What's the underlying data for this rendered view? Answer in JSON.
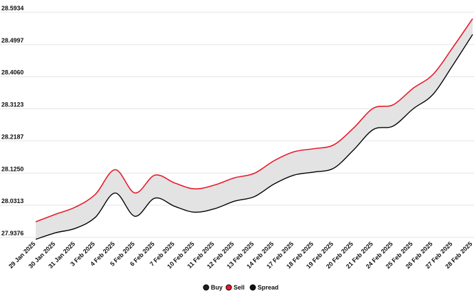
{
  "chart_data": {
    "type": "area",
    "categories": [
      "29 Jan 2025",
      "30 Jan 2025",
      "31 Jan 2025",
      "3 Feb 2025",
      "4 Feb 2025",
      "5 Feb 2025",
      "6 Feb 2025",
      "7 Feb 2025",
      "10 Feb 2025",
      "11 Feb 2025",
      "12 Feb 2025",
      "13 Feb 2025",
      "14 Feb 2025",
      "17 Feb 2025",
      "18 Feb 2025",
      "19 Feb 2025",
      "20 Feb 2025",
      "21 Feb 2025",
      "24 Feb 2025",
      "25 Feb 2025",
      "26 Feb 2025",
      "27 Feb 2025",
      "28 Feb 2025"
    ],
    "y_ticks": [
      "27.9376",
      "28.0313",
      "28.1250",
      "28.2187",
      "28.3123",
      "28.4060",
      "28.4997",
      "28.5934"
    ],
    "ylim": [
      27.9376,
      28.5934
    ],
    "grid": true,
    "legend_position": "bottom-center",
    "series": [
      {
        "name": "Buy",
        "color": "#000000",
        "values": [
          27.932,
          27.951,
          27.964,
          27.996,
          28.067,
          27.999,
          28.052,
          28.028,
          28.011,
          28.021,
          28.043,
          28.056,
          28.093,
          28.119,
          28.128,
          28.139,
          28.192,
          28.252,
          28.262,
          28.312,
          28.354,
          28.439,
          28.529
        ]
      },
      {
        "name": "Sell",
        "color": "#e8192c",
        "values": [
          27.983,
          28.005,
          28.026,
          28.063,
          28.135,
          28.067,
          28.119,
          28.096,
          28.079,
          28.09,
          28.111,
          28.124,
          28.161,
          28.187,
          28.196,
          28.207,
          28.256,
          28.314,
          28.324,
          28.372,
          28.412,
          28.491,
          28.575
        ]
      },
      {
        "name": "Spread",
        "color": "#111111",
        "fill": "#e3e3e3"
      }
    ]
  }
}
